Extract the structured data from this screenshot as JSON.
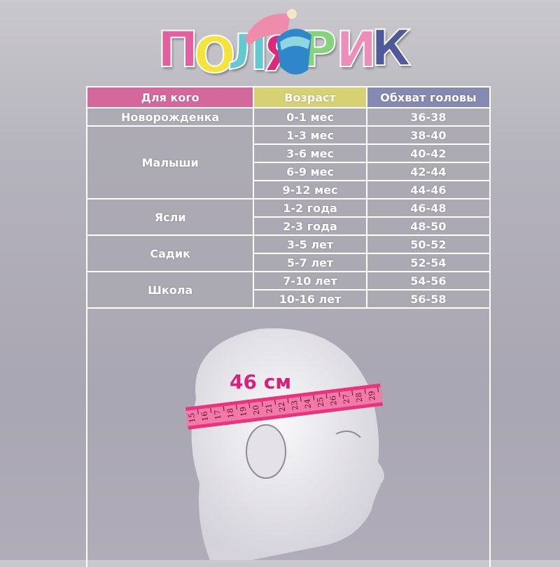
{
  "logo": {
    "text": "ПОЛЯРИК",
    "letters": [
      "П",
      "О",
      "Л",
      "Я",
      "Р",
      "И",
      "К"
    ]
  },
  "colors": {
    "header_who": "#d4679c",
    "header_age": "#d7d174",
    "header_size": "#8689b2",
    "tape": "#e8337d",
    "measure_text": "#d6237a"
  },
  "table": {
    "headers": [
      "Для кого",
      "Возраст",
      "Обхват головы"
    ],
    "groups": [
      {
        "label": "Новорожденка",
        "rows": [
          [
            "0-1 мес",
            "36-38"
          ]
        ]
      },
      {
        "label": "Малыши",
        "rows": [
          [
            "1-3  мес",
            "38-40"
          ],
          [
            "3-6  мес",
            "40-42"
          ],
          [
            "6-9  мес",
            "42-44"
          ],
          [
            "9-12  мес",
            "44-46"
          ]
        ]
      },
      {
        "label": "Ясли",
        "rows": [
          [
            "1-2 года",
            "46-48"
          ],
          [
            "2-3 года",
            "48-50"
          ]
        ]
      },
      {
        "label": "Садик",
        "rows": [
          [
            "3-5 лет",
            "50-52"
          ],
          [
            "5-7 лет",
            "52-54"
          ]
        ]
      },
      {
        "label": "Школа",
        "rows": [
          [
            "7-10 лет",
            "54-56"
          ],
          [
            "10-16 лет",
            "56-58"
          ]
        ]
      }
    ]
  },
  "illustration": {
    "measure_label": "46 см",
    "tape_numbers": [
      "15",
      "16",
      "17",
      "18",
      "19",
      "20",
      "21",
      "22",
      "23",
      "24",
      "25",
      "26",
      "27",
      "28",
      "29"
    ]
  }
}
